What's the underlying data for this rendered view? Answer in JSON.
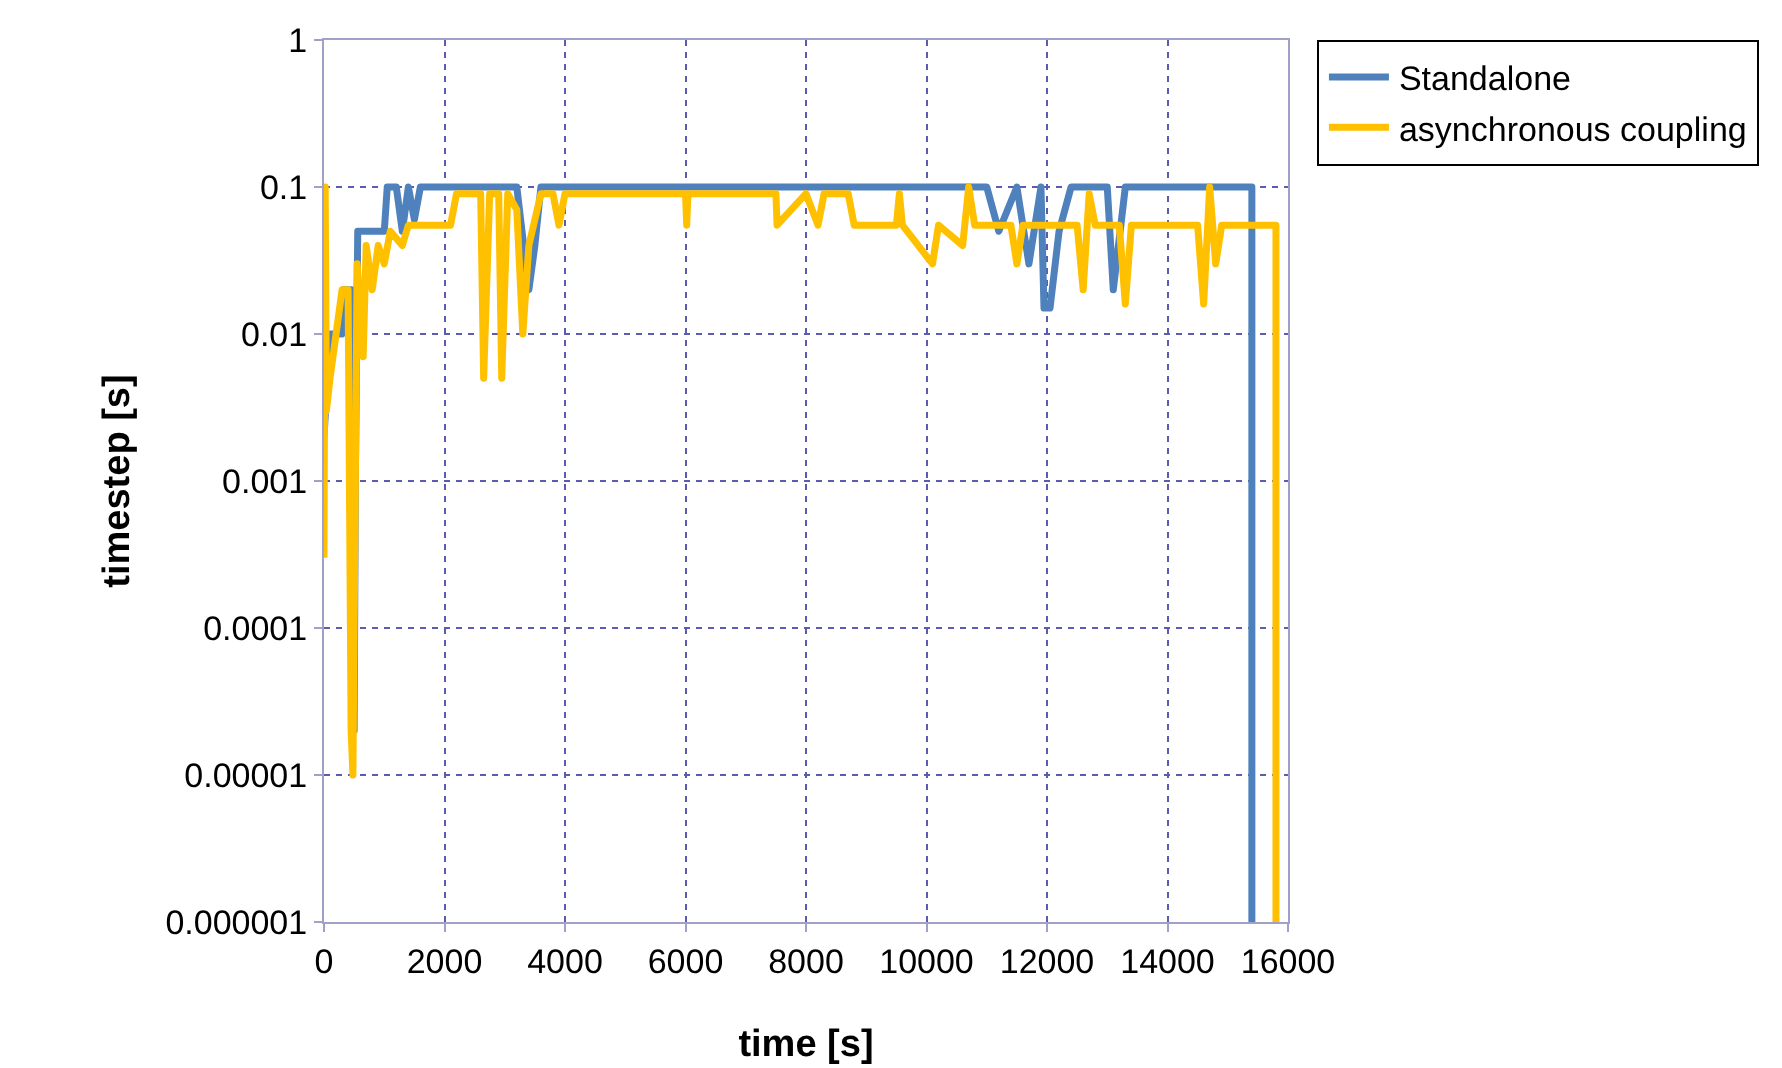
{
  "chart_data": {
    "type": "line",
    "xlabel": "time [s]",
    "ylabel": "timestep [s]",
    "log": "y",
    "grid": true,
    "legend": "right",
    "xlim": [
      0,
      16000
    ],
    "xticks": [
      0,
      2000,
      4000,
      6000,
      8000,
      10000,
      12000,
      14000,
      16000
    ],
    "ylim": [
      1e-06,
      1
    ],
    "yticks": [
      {
        "value": 1e-06,
        "label": "0.000001"
      },
      {
        "value": 1e-05,
        "label": "0.00001"
      },
      0.0001,
      0.001,
      0.01,
      0.1,
      1
    ],
    "series": [
      {
        "name": "Standalone",
        "color": "#4f81bd",
        "x": [
          0,
          100,
          300,
          320,
          450,
          480,
          500,
          520,
          560,
          1000,
          1050,
          1200,
          1300,
          1400,
          1500,
          1600,
          3200,
          3400,
          3500,
          3600,
          11000,
          11200,
          11500,
          11700,
          11900,
          11950,
          12050,
          12200,
          12400,
          13000,
          13100,
          13300,
          15400,
          15400
        ],
        "values": [
          0.002,
          0.01,
          0.01,
          0.02,
          0.02,
          0.0001,
          2e-05,
          0.001,
          0.05,
          0.05,
          0.1,
          0.1,
          0.05,
          0.1,
          0.06,
          0.1,
          0.1,
          0.02,
          0.04,
          0.1,
          0.1,
          0.05,
          0.1,
          0.03,
          0.1,
          0.015,
          0.015,
          0.05,
          0.1,
          0.1,
          0.02,
          0.1,
          0.1,
          1e-06
        ]
      },
      {
        "name": "asynchronous coupling",
        "color": "#ffc000",
        "x": [
          0,
          20,
          40,
          100,
          200,
          300,
          400,
          450,
          480,
          550,
          650,
          700,
          800,
          900,
          1000,
          1100,
          1300,
          1400,
          2100,
          2200,
          2600,
          2650,
          2750,
          2900,
          2950,
          3050,
          3200,
          3300,
          3400,
          3600,
          3800,
          3900,
          4000,
          6000,
          6020,
          6040,
          7500,
          7520,
          8000,
          8200,
          8300,
          8700,
          8800,
          9500,
          9550,
          9600,
          10100,
          10200,
          10600,
          10700,
          10800,
          11400,
          11500,
          11600,
          12500,
          12600,
          12700,
          12800,
          13200,
          13300,
          13400,
          14500,
          14600,
          14700,
          14800,
          14900,
          15800,
          15800
        ],
        "values": [
          0.0003,
          0.1,
          0.003,
          0.005,
          0.01,
          0.02,
          0.02,
          2e-05,
          1e-05,
          0.03,
          0.007,
          0.04,
          0.02,
          0.04,
          0.03,
          0.05,
          0.04,
          0.055,
          0.055,
          0.09,
          0.09,
          0.005,
          0.09,
          0.09,
          0.005,
          0.09,
          0.07,
          0.01,
          0.04,
          0.09,
          0.09,
          0.055,
          0.09,
          0.09,
          0.055,
          0.09,
          0.09,
          0.055,
          0.09,
          0.055,
          0.09,
          0.09,
          0.055,
          0.055,
          0.09,
          0.055,
          0.03,
          0.055,
          0.04,
          0.1,
          0.055,
          0.055,
          0.03,
          0.055,
          0.055,
          0.02,
          0.09,
          0.055,
          0.055,
          0.016,
          0.055,
          0.055,
          0.016,
          0.1,
          0.03,
          0.055,
          0.055,
          1e-06
        ]
      }
    ]
  }
}
